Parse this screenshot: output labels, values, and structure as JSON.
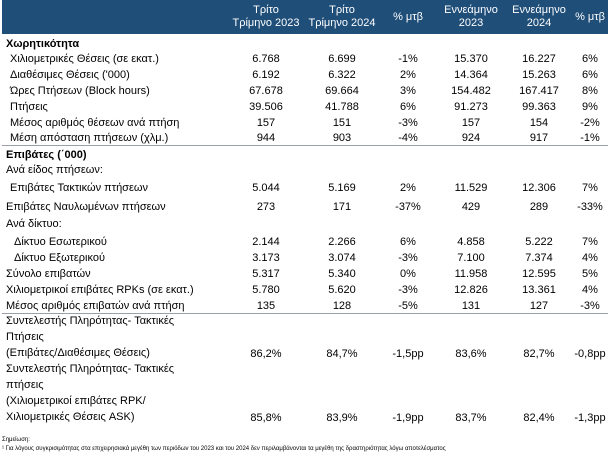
{
  "header": {
    "col1": [
      "Τρίτο",
      "Τρίμηνο 2023"
    ],
    "col2": [
      "Τρίτο",
      "Τρίμηνο 2024"
    ],
    "col3": "% μτβ",
    "col4": [
      "Εννεάμηνο",
      "2023"
    ],
    "col5": [
      "Εννεάμηνο",
      "2024"
    ],
    "col6": "% μτβ"
  },
  "rows": [
    {
      "label": "Χωρητικότητα",
      "values": [
        "",
        "",
        "",
        "",
        "",
        ""
      ]
    },
    {
      "label": "Χιλιομετρικές Θέσεις (σε εκατ.)",
      "values": [
        "6.768",
        "6.699",
        "-1%",
        "15.370",
        "16.227",
        "6%"
      ]
    },
    {
      "label": "Διαθέσιμες Θέσεις ('000)",
      "values": [
        "6.192",
        "6.322",
        "2%",
        "14.364",
        "15.263",
        "6%"
      ]
    },
    {
      "label": "Ώρες Πτήσεων (Block hours)",
      "values": [
        "67.678",
        "69.664",
        "3%",
        "154.482",
        "167.417",
        "8%"
      ]
    },
    {
      "label": "Πτήσεις",
      "values": [
        "39.506",
        "41.788",
        "6%",
        "91.273",
        "99.363",
        "9%"
      ]
    },
    {
      "label": "Μέσος αριθμός θέσεων ανά πτήση",
      "values": [
        "157",
        "151",
        "-3%",
        "157",
        "154",
        "-2%"
      ]
    },
    {
      "label": "Μέση απόσταση πτήσεων (χλμ.)",
      "values": [
        "944",
        "903",
        "-4%",
        "924",
        "917",
        "-1%"
      ]
    },
    {
      "label": "Επιβάτες (΄000)",
      "values": [
        "",
        "",
        "",
        "",
        "",
        ""
      ]
    },
    {
      "label": "Ανά είδος πτήσεων:",
      "values": [
        "",
        "",
        "",
        "",
        "",
        ""
      ]
    },
    {
      "label": "Επιβάτες Τακτικών πτήσεων",
      "values": [
        "5.044",
        "5.169",
        "2%",
        "11.529",
        "12.306",
        "7%"
      ]
    },
    {
      "label": "Επιβάτες Ναυλωμένων πτήσεων",
      "values": [
        "273",
        "171",
        "-37%",
        "429",
        "289",
        "-33%"
      ]
    },
    {
      "label": "Ανά δίκτυο:",
      "values": [
        "",
        "",
        "",
        "",
        "",
        ""
      ]
    },
    {
      "label": "Δίκτυο Εσωτερικού",
      "values": [
        "2.144",
        "2.266",
        "6%",
        "4.858",
        "5.222",
        "7%"
      ]
    },
    {
      "label": "Δίκτυο Εξωτερικού",
      "values": [
        "3.173",
        "3.074",
        "-3%",
        "7.100",
        "7.374",
        "4%"
      ]
    },
    {
      "label": "Σύνολο επιβατών",
      "values": [
        "5.317",
        "5.340",
        "0%",
        "11.958",
        "12.595",
        "5%"
      ]
    },
    {
      "label": "Χιλιομετρικοί επιβάτες RPKs (σε εκατ.)",
      "values": [
        "5.780",
        "5.620",
        "-3%",
        "12.826",
        "13.361",
        "4%"
      ]
    },
    {
      "label": "Μέσος αριθμός επιβατών ανά πτήση",
      "values": [
        "135",
        "128",
        "-5%",
        "131",
        "127",
        "-3%"
      ]
    },
    {
      "label": "Συντελεστής Πληρότητας- Τακτικές Πτήσεις (Επιβάτες/Διαθέσιμες Θέσεις)",
      "values": [
        "86,2%",
        "84,7%",
        "-1,5pp",
        "83,6%",
        "82,7%",
        "-0,8pp"
      ]
    },
    {
      "label": "Συντελεστής Πληρότητας- Τακτικές πτήσεις (Χιλιομετρικοί επιβάτες RPK/ Χιλιομετρικές Θέσεις ASK)",
      "values": [
        "85,8%",
        "83,9%",
        "-1,9pp",
        "83,7%",
        "82,4%",
        "-1,3pp"
      ]
    }
  ],
  "multiline_labels": {
    "lf1": [
      "Συντελεστής Πληρότητας- Τακτικές",
      "Πτήσεις",
      "(Επιβάτες/Διαθέσιμες Θέσεις)"
    ],
    "lf2": [
      "Συντελεστής Πληρότητας- Τακτικές",
      "πτήσεις",
      "(Χιλιομετρικοί επιβάτες RPK/",
      "Χιλιομετρικές Θέσεις ASK)"
    ]
  },
  "notes": {
    "title": "Σημείωση:",
    "text": "¹ Για λόγους συγκρισιμότητας στα επιχειρησιακά μεγέθη των περιόδων του 2023 και του 2024 δεν περιλαμβάνονται τα μεγέθη της δραστηριότητας λόγω αποτελέσματος"
  },
  "colors": {
    "header_bg": "#1f4e79",
    "header_text": "#ffffff"
  }
}
